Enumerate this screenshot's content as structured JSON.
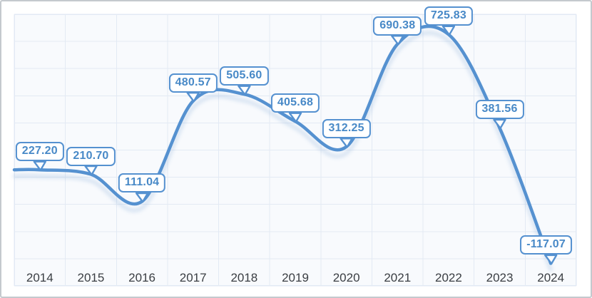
{
  "frame": {
    "border_color": "#c4c9ce",
    "background": "#ffffff"
  },
  "chart_data": {
    "type": "line",
    "title": "",
    "xlabel": "",
    "ylabel": "",
    "categories": [
      "2014",
      "2015",
      "2016",
      "2017",
      "2018",
      "2019",
      "2020",
      "2021",
      "2022",
      "2023",
      "2024"
    ],
    "values": [
      227.2,
      210.7,
      111.04,
      480.57,
      505.6,
      405.68,
      312.25,
      690.38,
      725.83,
      381.56,
      -117.07
    ],
    "point_labels": [
      "227.20",
      "210.70",
      "111.04",
      "480.57",
      "505.60",
      "405.68",
      "312.25",
      "690.38",
      "725.83",
      "381.56",
      "-117.07"
    ],
    "ylim": [
      -200,
      800
    ],
    "grid": {
      "visible": true,
      "rows": 10,
      "cols": 11,
      "line_color": "#e3eaf4",
      "plot_bg": "#f8fafd",
      "plot_border_color": "#dfe8f3"
    },
    "line": {
      "color": "#5591d0",
      "width": 4.5,
      "smooth": true,
      "shadow_color": "#84aad6"
    },
    "labels_style": {
      "bubble_bg": "#ffffff",
      "bubble_border_color": "#5591d0",
      "bubble_text_color": "#4889c7",
      "axis_text_color": "#3a3e43"
    },
    "legend": null,
    "y_axis_tick_labels_visible": false
  }
}
